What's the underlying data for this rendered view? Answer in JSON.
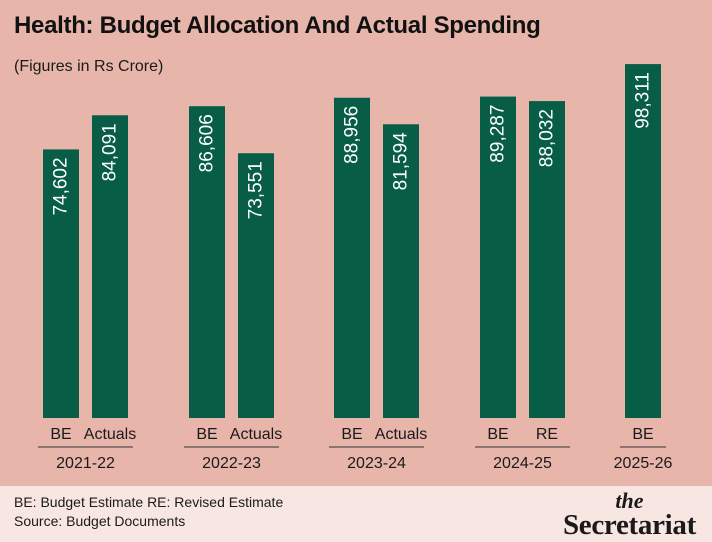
{
  "header": {
    "title": "Health: Budget Allocation And Actual Spending",
    "subtitle": "(Figures in Rs Crore)"
  },
  "footer": {
    "legend_line1": "BE: Budget Estimate  RE: Revised Estimate",
    "legend_line2": "Source: Budget Documents"
  },
  "brand": {
    "line1": "the",
    "line2": "Secretariat"
  },
  "colors": {
    "background": "#e8b5ab",
    "bar": "#075d45",
    "label": "#ffffff",
    "footer_bg": "#f8e6e2"
  },
  "chart_data": {
    "type": "bar",
    "title": "Health: Budget Allocation And Actual Spending",
    "subtitle": "(Figures in Rs Crore)",
    "ylim": [
      0,
      100000
    ],
    "grid": false,
    "groups": [
      {
        "year": "2021-22",
        "bars": [
          {
            "label": "BE",
            "value": 74602,
            "display": "74,602"
          },
          {
            "label": "Actuals",
            "value": 84091,
            "display": "84,091"
          }
        ]
      },
      {
        "year": "2022-23",
        "bars": [
          {
            "label": "BE",
            "value": 86606,
            "display": "86,606"
          },
          {
            "label": "Actuals",
            "value": 73551,
            "display": "73,551"
          }
        ]
      },
      {
        "year": "2023-24",
        "bars": [
          {
            "label": "BE",
            "value": 88956,
            "display": "88,956"
          },
          {
            "label": "Actuals",
            "value": 81594,
            "display": "81,594"
          }
        ]
      },
      {
        "year": "2024-25",
        "bars": [
          {
            "label": "BE",
            "value": 89287,
            "display": "89,287"
          },
          {
            "label": "RE",
            "value": 88032,
            "display": "88,032"
          }
        ]
      },
      {
        "year": "2025-26",
        "bars": [
          {
            "label": "BE",
            "value": 98311,
            "display": "98,311"
          }
        ]
      }
    ]
  }
}
